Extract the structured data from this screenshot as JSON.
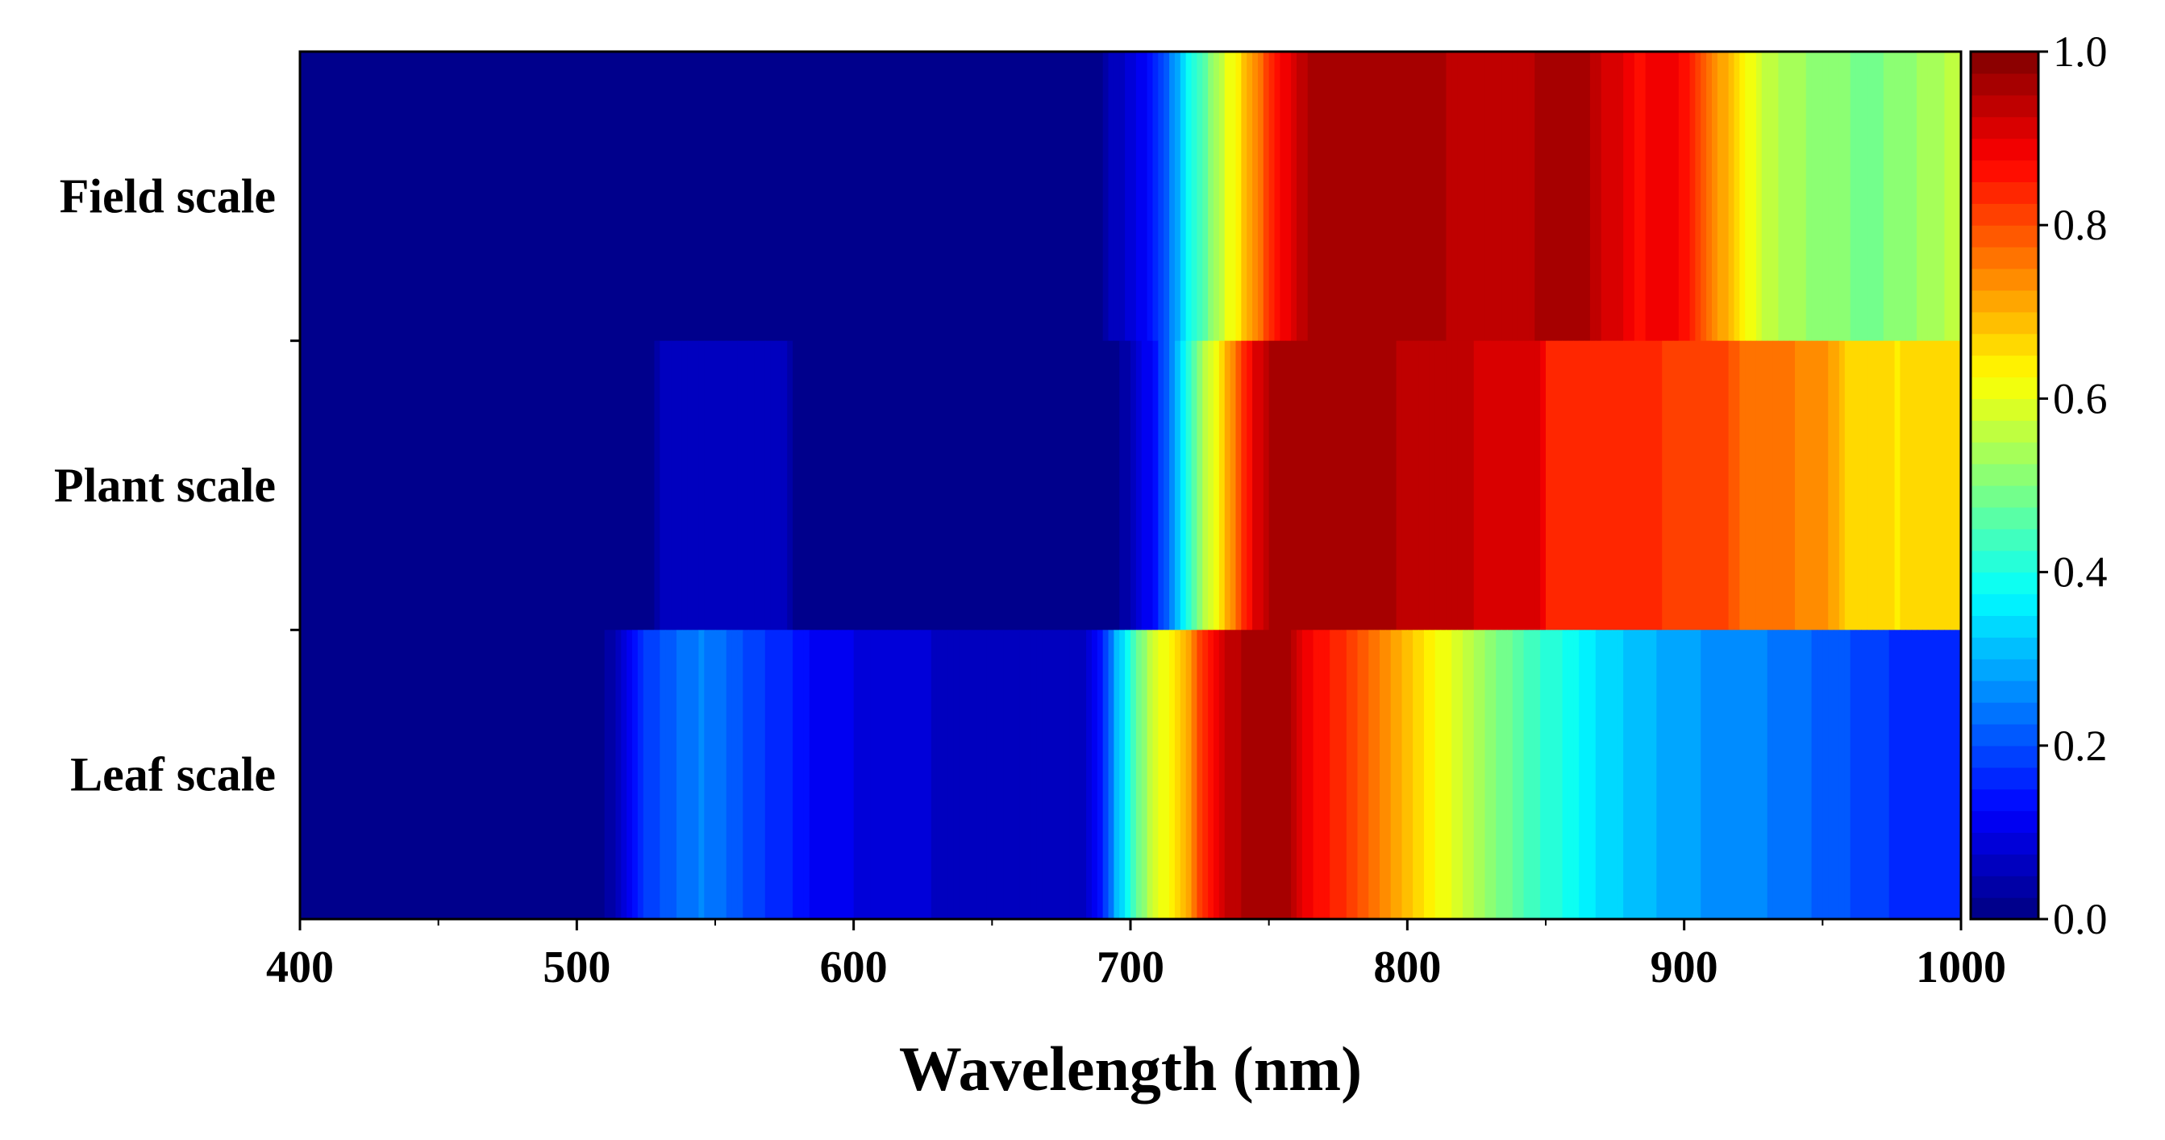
{
  "chart_data": {
    "type": "heatmap",
    "title": "",
    "xlabel": "Wavelength (nm)",
    "ylabel": "",
    "xlim": [
      400,
      1000
    ],
    "x_ticks": [
      400,
      500,
      600,
      700,
      800,
      900,
      1000
    ],
    "x_tick_labels": [
      "400",
      "500",
      "600",
      "700",
      "800",
      "900",
      "1000"
    ],
    "rows": [
      {
        "name": "Field scale",
        "points": [
          [
            400,
            0.02
          ],
          [
            690,
            0.02
          ],
          [
            693,
            0.05
          ],
          [
            700,
            0.08
          ],
          [
            705,
            0.12
          ],
          [
            710,
            0.16
          ],
          [
            715,
            0.25
          ],
          [
            720,
            0.36
          ],
          [
            725,
            0.44
          ],
          [
            730,
            0.52
          ],
          [
            735,
            0.6
          ],
          [
            740,
            0.66
          ],
          [
            745,
            0.74
          ],
          [
            750,
            0.82
          ],
          [
            755,
            0.88
          ],
          [
            760,
            0.92
          ],
          [
            765,
            0.96
          ],
          [
            770,
            0.97
          ],
          [
            812,
            0.97
          ],
          [
            815,
            0.94
          ],
          [
            845,
            0.94
          ],
          [
            848,
            0.97
          ],
          [
            865,
            0.97
          ],
          [
            868,
            0.93
          ],
          [
            878,
            0.9
          ],
          [
            885,
            0.86
          ],
          [
            890,
            0.9
          ],
          [
            900,
            0.87
          ],
          [
            905,
            0.8
          ],
          [
            910,
            0.74
          ],
          [
            915,
            0.7
          ],
          [
            920,
            0.66
          ],
          [
            925,
            0.6
          ],
          [
            930,
            0.56
          ],
          [
            940,
            0.53
          ],
          [
            955,
            0.51
          ],
          [
            965,
            0.49
          ],
          [
            980,
            0.51
          ],
          [
            990,
            0.54
          ],
          [
            1000,
            0.56
          ]
        ]
      },
      {
        "name": "Plant scale",
        "points": [
          [
            400,
            0.02
          ],
          [
            528,
            0.02
          ],
          [
            530,
            0.06
          ],
          [
            576,
            0.06
          ],
          [
            578,
            0.02
          ],
          [
            695,
            0.02
          ],
          [
            700,
            0.05
          ],
          [
            705,
            0.1
          ],
          [
            710,
            0.16
          ],
          [
            715,
            0.26
          ],
          [
            720,
            0.4
          ],
          [
            725,
            0.52
          ],
          [
            730,
            0.6
          ],
          [
            735,
            0.7
          ],
          [
            740,
            0.82
          ],
          [
            745,
            0.9
          ],
          [
            750,
            0.95
          ],
          [
            760,
            0.97
          ],
          [
            795,
            0.97
          ],
          [
            797,
            0.94
          ],
          [
            822,
            0.94
          ],
          [
            824,
            0.91
          ],
          [
            848,
            0.91
          ],
          [
            850,
            0.84
          ],
          [
            890,
            0.84
          ],
          [
            893,
            0.8
          ],
          [
            915,
            0.8
          ],
          [
            920,
            0.77
          ],
          [
            940,
            0.75
          ],
          [
            955,
            0.72
          ],
          [
            960,
            0.66
          ],
          [
            975,
            0.66
          ],
          [
            976,
            0.62
          ],
          [
            980,
            0.66
          ],
          [
            1000,
            0.66
          ]
        ]
      },
      {
        "name": "Leaf scale",
        "points": [
          [
            400,
            0.02
          ],
          [
            510,
            0.02
          ],
          [
            515,
            0.06
          ],
          [
            520,
            0.12
          ],
          [
            525,
            0.18
          ],
          [
            535,
            0.22
          ],
          [
            545,
            0.25
          ],
          [
            555,
            0.22
          ],
          [
            565,
            0.18
          ],
          [
            575,
            0.16
          ],
          [
            585,
            0.12
          ],
          [
            600,
            0.1
          ],
          [
            615,
            0.08
          ],
          [
            640,
            0.07
          ],
          [
            660,
            0.06
          ],
          [
            675,
            0.05
          ],
          [
            685,
            0.08
          ],
          [
            690,
            0.16
          ],
          [
            695,
            0.3
          ],
          [
            700,
            0.42
          ],
          [
            705,
            0.52
          ],
          [
            710,
            0.6
          ],
          [
            715,
            0.64
          ],
          [
            720,
            0.7
          ],
          [
            725,
            0.8
          ],
          [
            730,
            0.88
          ],
          [
            735,
            0.93
          ],
          [
            745,
            0.97
          ],
          [
            755,
            0.97
          ],
          [
            760,
            0.92
          ],
          [
            765,
            0.88
          ],
          [
            775,
            0.84
          ],
          [
            785,
            0.78
          ],
          [
            795,
            0.72
          ],
          [
            805,
            0.66
          ],
          [
            815,
            0.6
          ],
          [
            825,
            0.54
          ],
          [
            840,
            0.46
          ],
          [
            855,
            0.4
          ],
          [
            870,
            0.34
          ],
          [
            890,
            0.3
          ],
          [
            910,
            0.27
          ],
          [
            930,
            0.25
          ],
          [
            950,
            0.22
          ],
          [
            970,
            0.18
          ],
          [
            985,
            0.16
          ],
          [
            1000,
            0.16
          ]
        ]
      }
    ],
    "colorbar": {
      "range": [
        0.0,
        1.0
      ],
      "ticks": [
        0.0,
        0.2,
        0.4,
        0.6,
        0.8,
        1.0
      ],
      "tick_labels": [
        "0.0",
        "0.2",
        "0.4",
        "0.6",
        "0.8",
        "1.0"
      ],
      "levels": 40,
      "colormap": "jet"
    },
    "grid": false,
    "legend": "colorbar-right"
  }
}
